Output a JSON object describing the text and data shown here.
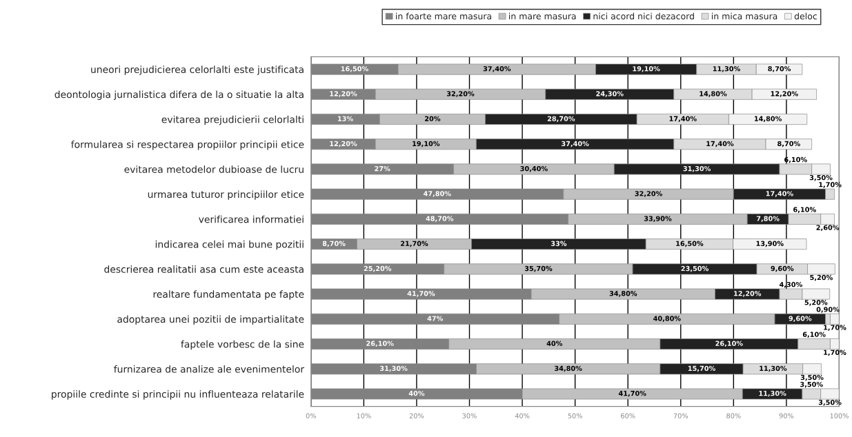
{
  "chart_data": {
    "type": "bar",
    "orientation": "horizontal",
    "stacked": true,
    "categories": [
      "uneori prejudicierea celorlalti este justificata",
      "deontologia jurnalistica difera de la o situatie la alta",
      "evitarea prejudicierii celorlalti",
      "formularea si respectarea propiilor principii etice",
      "evitarea metodelor dubioase de lucru",
      "urmarea tuturor principiilor etice",
      "verificarea informatiei",
      "indicarea celei mai bune pozitii",
      "descrierea realitatii asa cum este aceasta",
      "realtare fundamentata pe fapte",
      "adoptarea unei pozitii de impartialitate",
      "faptele vorbesc de la sine",
      "furnizarea de analize ale evenimentelor",
      "propiile credinte si principii nu influenteaza relatarile"
    ],
    "series": [
      {
        "name": "in foarte mare masura",
        "color": "#808080",
        "values": [
          16.5,
          12.2,
          13,
          12.2,
          27,
          47.8,
          48.7,
          8.7,
          25.2,
          41.7,
          47,
          26.1,
          31.3,
          40
        ],
        "value_labels": [
          "16,50%",
          "12,20%",
          "13%",
          "12,20%",
          "27%",
          "47,80%",
          "48,70%",
          "8,70%",
          "25,20%",
          "41,70%",
          "47%",
          "26,10%",
          "31,30%",
          "40%"
        ]
      },
      {
        "name": "in mare masura",
        "color": "#c0c0c0",
        "values": [
          37.4,
          32.2,
          20,
          19.1,
          30.4,
          32.2,
          33.9,
          21.7,
          35.7,
          34.8,
          40.8,
          40,
          34.8,
          41.7
        ],
        "value_labels": [
          "37,40%",
          "32,20%",
          "20%",
          "19,10%",
          "30,40%",
          "32,20%",
          "33,90%",
          "21,70%",
          "35,70%",
          "34,80%",
          "40,80%",
          "40%",
          "34,80%",
          "41,70%"
        ]
      },
      {
        "name": "nici acord nici dezacord",
        "color": "#222222",
        "values": [
          19.1,
          24.3,
          28.7,
          37.4,
          31.3,
          17.4,
          7.8,
          33,
          23.5,
          12.2,
          9.6,
          26.1,
          15.7,
          11.3
        ],
        "value_labels": [
          "19,10%",
          "24,30%",
          "28,70%",
          "37,40%",
          "31,30%",
          "17,40%",
          "7,80%",
          "33%",
          "23,50%",
          "12,20%",
          "9,60%",
          "26,10%",
          "15,70%",
          "11,30%"
        ]
      },
      {
        "name": "in mica masura",
        "color": "#dcdcdc",
        "values": [
          11.3,
          14.8,
          17.4,
          17.4,
          6.1,
          1.7,
          6.1,
          16.5,
          9.6,
          4.3,
          0.9,
          6.1,
          11.3,
          3.5
        ],
        "value_labels": [
          "11,30%",
          "14,80%",
          "17,40%",
          "17,40%",
          "6,10%",
          "1,70%",
          "6,10%",
          "16,50%",
          "9,60%",
          "4,30%",
          "0,90%",
          "6,10%",
          "11,30%",
          "3,50%"
        ]
      },
      {
        "name": "deloc",
        "color": "#f2f2f2",
        "values": [
          8.7,
          12.2,
          14.8,
          8.7,
          3.5,
          null,
          2.6,
          13.9,
          5.2,
          5.2,
          1.7,
          1.7,
          3.5,
          3.5
        ],
        "value_labels": [
          "8,70%",
          "12,20%",
          "14,80%",
          "8,70%",
          "3,50%",
          null,
          "2,60%",
          "13,90%",
          "5,20%",
          "5,20%",
          "1,70%",
          "1,70%",
          "3,50%",
          "3,50%"
        ]
      }
    ],
    "xlim": [
      0,
      100
    ],
    "xticks": [
      {
        "value": 0,
        "label": "0%"
      },
      {
        "value": 10,
        "label": "10%"
      },
      {
        "value": 20,
        "label": "20%"
      },
      {
        "value": 30,
        "label": "30%"
      },
      {
        "value": 40,
        "label": "40%"
      },
      {
        "value": 50,
        "label": "50%"
      },
      {
        "value": 60,
        "label": "60%"
      },
      {
        "value": 70,
        "label": "70%"
      },
      {
        "value": 80,
        "label": "80%"
      },
      {
        "value": 90,
        "label": "90%"
      },
      {
        "value": 100,
        "label": "100%"
      }
    ],
    "grid": "x",
    "legend": "top"
  }
}
